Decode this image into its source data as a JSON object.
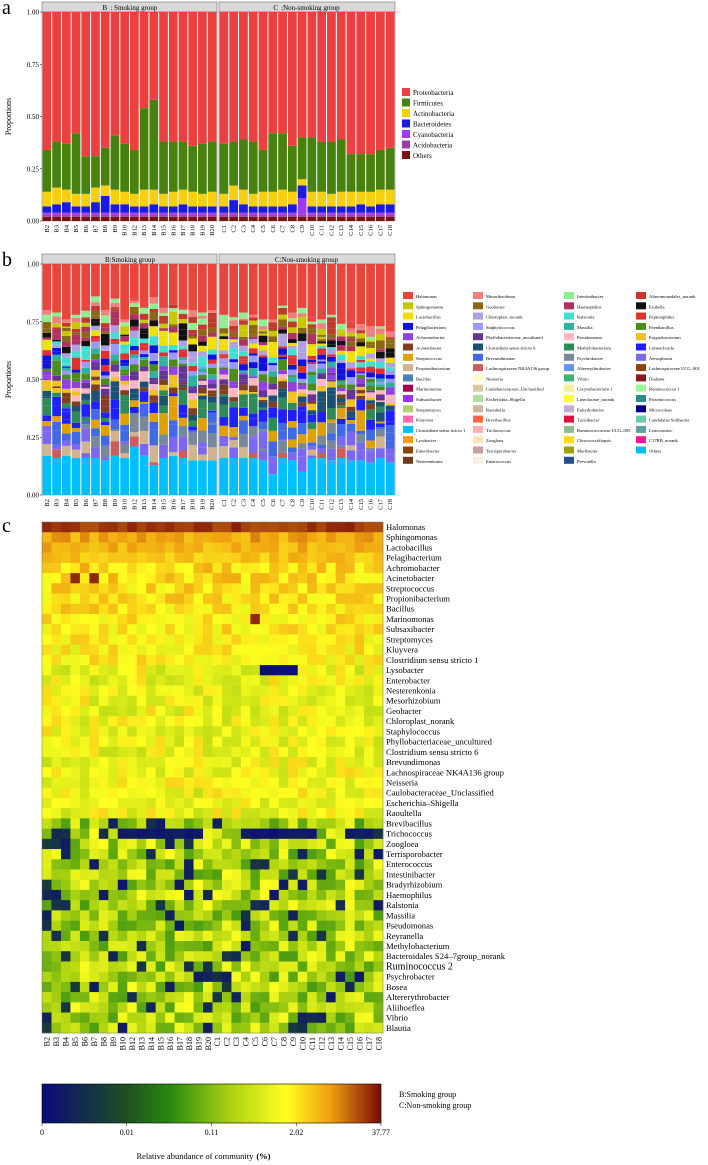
{
  "panel_letters": [
    "a",
    "b",
    "c"
  ],
  "samples_smoking": [
    "B2",
    "B3",
    "B4",
    "B5",
    "B6",
    "B7",
    "B8",
    "B9",
    "B10",
    "B12",
    "B13",
    "B14",
    "B15",
    "B16",
    "B17",
    "B18",
    "B19",
    "B20"
  ],
  "samples_nonsmoking": [
    "C1",
    "C2",
    "C3",
    "C4",
    "C5",
    "C6",
    "C7",
    "C8",
    "C9",
    "C10",
    "C11",
    "C12",
    "C13",
    "C14",
    "C15",
    "C16",
    "C17",
    "C18"
  ],
  "chart_data": [
    {
      "id": "a",
      "type": "bar",
      "stacked": true,
      "ylabel": "Proportions",
      "ylim": [
        0,
        1
      ],
      "yticks": [
        "0.00",
        "0.25",
        "0.50",
        "0.75",
        "1.00"
      ],
      "strip_left": "B  : Smoking group",
      "strip_right": "C  :Non-smoking group",
      "legend": [
        "Proteobacteria",
        "Firmicutes",
        "Actinobacteria",
        "Bacteroidetes",
        "Cyanobacteria",
        "Acidobacteria",
        "Others"
      ],
      "colors": [
        "#ec3f40",
        "#47820e",
        "#f8cf0e",
        "#1a1ae0",
        "#a238ef",
        "#a13aa7",
        "#7a1414"
      ],
      "bottom_stack": {
        "Others": [
          0.02,
          0.02,
          0.02,
          0.02,
          0.02,
          0.02,
          0.02,
          0.02,
          0.02,
          0.02,
          0.02,
          0.02,
          0.02,
          0.02,
          0.02,
          0.02,
          0.02,
          0.02,
          0.02,
          0.02,
          0.02,
          0.02,
          0.02,
          0.02,
          0.02,
          0.02,
          0.02,
          0.02,
          0.02,
          0.02,
          0.02,
          0.02,
          0.02,
          0.02,
          0.02,
          0.02
        ],
        "Acidobacteria": [
          0.01,
          0.01,
          0.01,
          0.01,
          0.01,
          0.01,
          0.01,
          0.01,
          0.01,
          0.01,
          0.01,
          0.01,
          0.01,
          0.01,
          0.01,
          0.01,
          0.01,
          0.01,
          0.01,
          0.01,
          0.01,
          0.01,
          0.01,
          0.01,
          0.01,
          0.01,
          0.01,
          0.01,
          0.01,
          0.01,
          0.01,
          0.01,
          0.01,
          0.01,
          0.01,
          0.01
        ],
        "Cyanobacteria": [
          0.01,
          0.01,
          0.01,
          0.01,
          0.01,
          0.01,
          0.01,
          0.01,
          0.01,
          0.01,
          0.01,
          0.01,
          0.01,
          0.01,
          0.01,
          0.01,
          0.01,
          0.01,
          0.01,
          0.01,
          0.01,
          0.01,
          0.01,
          0.01,
          0.01,
          0.01,
          0.08,
          0.01,
          0.01,
          0.01,
          0.01,
          0.01,
          0.01,
          0.01,
          0.01,
          0.01
        ],
        "Bacteroidetes": [
          0.03,
          0.04,
          0.05,
          0.03,
          0.03,
          0.05,
          0.08,
          0.04,
          0.04,
          0.03,
          0.03,
          0.04,
          0.03,
          0.03,
          0.04,
          0.03,
          0.03,
          0.03,
          0.03,
          0.06,
          0.04,
          0.03,
          0.03,
          0.03,
          0.03,
          0.04,
          0.06,
          0.03,
          0.03,
          0.03,
          0.03,
          0.03,
          0.04,
          0.03,
          0.04,
          0.04
        ],
        "Actinobacteria": [
          0.07,
          0.08,
          0.06,
          0.06,
          0.06,
          0.07,
          0.05,
          0.07,
          0.06,
          0.06,
          0.08,
          0.07,
          0.06,
          0.07,
          0.07,
          0.07,
          0.06,
          0.07,
          0.06,
          0.07,
          0.07,
          0.06,
          0.07,
          0.07,
          0.08,
          0.06,
          0.03,
          0.07,
          0.07,
          0.06,
          0.07,
          0.07,
          0.06,
          0.07,
          0.07,
          0.07
        ],
        "Firmicutes": [
          0.2,
          0.22,
          0.22,
          0.29,
          0.18,
          0.15,
          0.18,
          0.26,
          0.23,
          0.21,
          0.39,
          0.43,
          0.25,
          0.24,
          0.23,
          0.22,
          0.24,
          0.24,
          0.24,
          0.21,
          0.24,
          0.25,
          0.2,
          0.28,
          0.27,
          0.22,
          0.2,
          0.26,
          0.24,
          0.25,
          0.25,
          0.18,
          0.18,
          0.18,
          0.19,
          0.2
        ]
      },
      "note": "Proteobacteria fills remaining proportion to 1.00"
    },
    {
      "id": "b",
      "type": "bar",
      "stacked": true,
      "ylabel": "Proportions",
      "ylim": [
        0,
        1
      ],
      "yticks": [
        "0.00",
        "0.25",
        "0.50",
        "0.75",
        "1.00"
      ],
      "strip_left": "B:Smoking group",
      "strip_right": "C:Non-smoking group",
      "top_red_start": [
        0.8,
        0.79,
        0.76,
        0.78,
        0.82,
        0.86,
        0.8,
        0.85,
        0.76,
        0.85,
        0.81,
        0.89,
        0.81,
        0.84,
        0.81,
        0.8,
        0.79,
        0.8,
        0.78,
        0.77,
        0.79,
        0.78,
        0.76,
        0.76,
        0.82,
        0.79,
        0.81,
        0.77,
        0.76,
        0.78,
        0.76,
        0.75,
        0.74,
        0.73,
        0.73,
        0.73
      ],
      "bottom_cyan": [
        0.17,
        0.16,
        0.17,
        0.16,
        0.16,
        0.16,
        0.15,
        0.17,
        0.16,
        0.21,
        0.17,
        0.13,
        0.16,
        0.17,
        0.16,
        0.15,
        0.15,
        0.15,
        0.16,
        0.16,
        0.16,
        0.16,
        0.15,
        0.09,
        0.16,
        0.15,
        0.1,
        0.16,
        0.16,
        0.15,
        0.16,
        0.15,
        0.15,
        0.14,
        0.16,
        0.14
      ],
      "legend": [
        "Halomonas",
        "Sphingomonas",
        "Lactobacillus",
        "Pelagibacterium",
        "Achromobacter",
        "Acinetobacter",
        "Streptococcus",
        "Propionibacterium",
        "Bacillus",
        "Marinomonas",
        "Subsaxibacter",
        "Streptomyces",
        "Kluyvera",
        "Clostridium sensu stricto 1",
        "Lysobacter",
        "Enterobacter",
        "Nesterenkonia",
        "Mesorhizobium",
        "Geobacter",
        "Chloroplast_norank",
        "Staphylococcus",
        "Phyllobacteriaceae_uncultured",
        "Clostridium sensu stricto 6",
        "Brevundimonas",
        "Lachnospiraceae NK4A136 group",
        "Neisseria",
        "Caulobacteraceae_Unclassified",
        "Escherichia–Shigella",
        "Raoultella",
        "Brevibacillus",
        "Trichococcus",
        "Zoogloea",
        "Terrisporobacter",
        "Enterococcus",
        "Intestinibacter",
        "Haemophilus",
        "Ralstonia",
        "Massilia",
        "Pseudomonas",
        "Methylobacterium",
        "Psychrobacter",
        "Altererythrobacter",
        "Enhydrobacter",
        "Corynebacterium 1",
        "Lachnospiraceae UCG–008",
        "Vibrio",
        "Turicibacter",
        "Ruminococcaceae UCG–005",
        "Lineolae",
        "Chroococcidiopsis",
        "Muribacter",
        "Prevotella",
        "Alteromonadales_norank",
        "Erysipelothrix",
        "Peptoniphilus",
        "Paenibacillus",
        "Exiguobacterium",
        "Luteimonas",
        "Aeromonas",
        "Lachnospiraceae UCG–001",
        "Dialister",
        "Ruminococcus 1",
        "Pirellula",
        "Microcoleus",
        "Candidatus Solibacter",
        "Leuconostoc",
        "C17RB_norank",
        "Others"
      ],
      "legend_display": [
        [
          "Halomonas",
          "Mesorhizobium",
          "Intestinibacter",
          "Alteromonadales_norank"
        ],
        [
          "Sphingomonas",
          "Geobacter",
          "Haemophilus",
          "Erubella"
        ],
        [
          "Lactobacillus",
          "Chloroplast_norank",
          "Ralstonia",
          "Peptoniphilus"
        ],
        [
          "Pelagibacterium",
          "Staphylococcus",
          "Massilia",
          "Paenibacillus"
        ],
        [
          "Achromobacter",
          "Phyllobacteriaceae_uncultured",
          "Pseudomonas",
          "Exiguobacterium"
        ],
        [
          "Acinetobacter",
          "Clostridium sensu stricto 6",
          "Methylobacterium",
          "Limnochorda"
        ],
        [
          "Streptococcus",
          "Brevundimonas",
          "Psychrobacter",
          "Aerosphaera"
        ],
        [
          "Propionibacterium",
          "Lachnospiraceae NK4A136 group",
          "Altererythrobacter",
          "Lachnospiraceae UCG–001"
        ],
        [
          "Bacillus",
          "Neisseria",
          "Vibrio",
          "Dialister"
        ],
        [
          "Marinomonas",
          "Caulobacteraceae_Unclassified",
          "Corynebacterium 1",
          "Ruminococcus 1"
        ],
        [
          "Subsaxibacter",
          "Escherichia–Shigella",
          "Lineolaceae_norank",
          "Proteinicoccus"
        ],
        [
          "Streptomyces",
          "Raoultella",
          "Enhydrobacter",
          "Microcoleus"
        ],
        [
          "Kluyvera",
          "Brevibacillus",
          "Turicibacter",
          "Candidatus Solibacter"
        ],
        [
          "Clostridium sensu stricto 1",
          "Trichococcus",
          "Ruminococcaceae UCG–005",
          "Leuconostoc"
        ],
        [
          "Lysobacter",
          "Zoogloea",
          "Chroococcidiopsis",
          "C17RB_norank"
        ],
        [
          "Enterobacter",
          "Terrisporobacter",
          "Muribacter",
          "Others"
        ],
        [
          "Nesterenkonia",
          "Enterococcus",
          "Prevotella",
          ""
        ]
      ],
      "legend_colors_display": [
        [
          "#e8453c",
          "#f08080",
          "#90ee90",
          "#c0392b"
        ],
        [
          "#c8c800",
          "#8b6914",
          "#b03060",
          "#111111"
        ],
        [
          "#f0e000",
          "#b0a0e0",
          "#40e0d0",
          "#e03030"
        ],
        [
          "#1010e0",
          "#9999ff",
          "#30b0a0",
          "#4b8b1b"
        ],
        [
          "#9040e0",
          "#663399",
          "#ffb6c1",
          "#f0c020"
        ],
        [
          "#804020",
          "#1a5276",
          "#2e8b57",
          "#2020ff"
        ],
        [
          "#e0a000",
          "#4169e1",
          "#778899",
          "#7b68ee"
        ],
        [
          "#d2b48c",
          "#cd5c5c",
          "#6495ed",
          "#8b4513"
        ],
        [
          "#4682b4",
          "#fffacd",
          "#3cb371",
          "#8b1a1a"
        ],
        [
          "#a00050",
          "#d8c8a0",
          "#f0f0a0",
          "#98fb98"
        ],
        [
          "#9b30ff",
          "#b0e0a0",
          "#ffff33",
          "#2e8b8b"
        ],
        [
          "#b0d070",
          "#cdb79e",
          "#c0b0d0",
          "#000080"
        ],
        [
          "#ff69b4",
          "#ff6347",
          "#dc143c",
          "#66cdaa"
        ],
        [
          "#00bfff",
          "#ffb0b0",
          "#8fbc8f",
          "#5f9ea0"
        ],
        [
          "#ff9900",
          "#ffe4b5",
          "#ffdd00",
          "#ff1493"
        ],
        [
          "#8b4500",
          "#c8a0a0",
          "#a0a000",
          "#00c0f0"
        ],
        [
          "#6b3a1a",
          "#f5eedc",
          "#264f8b",
          ""
        ]
      ]
    },
    {
      "id": "c",
      "type": "heatmap",
      "rows": [
        "Halomonas",
        "Sphingomonas",
        "Lactobacillus",
        "Pelagibacterium",
        "Achromobacter",
        "Acinetobacter",
        "Streptococcus",
        "Propionibacterium",
        "Bacillus",
        "Marinomonas",
        "Subsaxibacter",
        "Streptomyces",
        "Kluyvera",
        "Clostridium sensu stricto 1",
        "Lysobacter",
        "Enterobacter",
        "Nesterenkonia",
        "Mesorhizobium",
        "Geobacter",
        "Chloroplast_norank",
        "Staphylococcus",
        "Phyllobacteriaceae_uncultured",
        "Clostridium sensu stricto 6",
        "Brevundimonas",
        "Lachnospiraceae NK4A136 group",
        "Neisseria",
        "Caulobacteraceae_Unclassified",
        "Escherichia–Shigella",
        "Raoultella",
        "Brevibacillus",
        "Trichococcus",
        "Zoogloea",
        "Terrisporobacter",
        "Enterococcus",
        "Intestinibacter",
        "Bradyrhizobium",
        "Haemophilus",
        "Ralstonia",
        "Massilia",
        "Pseudomonas",
        "Reyranella",
        "Methylobacterium",
        "Bacteroidales S24–7group_norank",
        "Ruminococcus 2",
        "Psychrobacter",
        "Bosea",
        "Altererythrobacter",
        "Aliihoeflea",
        "Vibrio",
        "Blautia"
      ],
      "colorbar_ticks": [
        "0",
        "0.01",
        "0.11",
        "2.02",
        "37.77"
      ],
      "colorbar_label": "Relative abundance of community",
      "colorbar_unit": "(%)",
      "group_legend": [
        "B:Smoking group",
        "C:Non-smoking group"
      ]
    }
  ]
}
